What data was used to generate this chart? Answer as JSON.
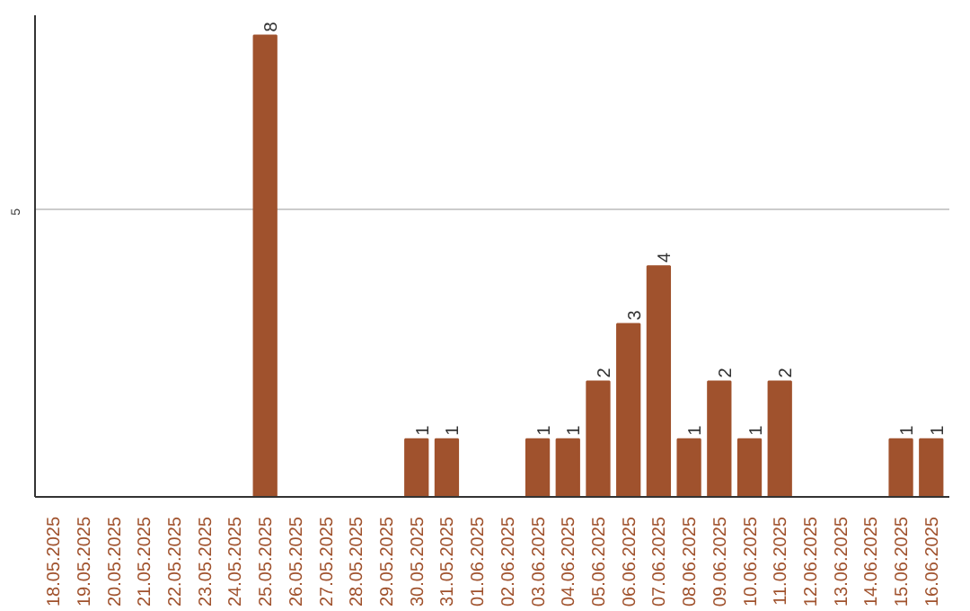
{
  "chart_data": {
    "type": "bar",
    "categories": [
      "18.05.2025",
      "19.05.2025",
      "20.05.2025",
      "21.05.2025",
      "22.05.2025",
      "23.05.2025",
      "24.05.2025",
      "25.05.2025",
      "26.05.2025",
      "27.05.2025",
      "28.05.2025",
      "29.05.2025",
      "30.05.2025",
      "31.05.2025",
      "01.06.2025",
      "02.06.2025",
      "03.06.2025",
      "04.06.2025",
      "05.06.2025",
      "06.06.2025",
      "07.06.2025",
      "08.06.2025",
      "09.06.2025",
      "10.06.2025",
      "11.06.2025",
      "12.06.2025",
      "13.06.2025",
      "14.06.2025",
      "15.06.2025",
      "16.06.2025"
    ],
    "values": [
      0,
      0,
      0,
      0,
      0,
      0,
      0,
      8,
      0,
      0,
      0,
      0,
      1,
      1,
      0,
      0,
      1,
      1,
      2,
      3,
      4,
      1,
      2,
      1,
      2,
      0,
      0,
      0,
      1,
      1
    ],
    "value_labels": [
      null,
      null,
      null,
      null,
      null,
      null,
      null,
      "8",
      null,
      null,
      null,
      null,
      "1",
      "1",
      null,
      null,
      "1",
      "1",
      "2",
      "3",
      "4",
      "1",
      "2",
      "1",
      "2",
      null,
      null,
      null,
      "1",
      "1"
    ],
    "color": "#a0522d",
    "ylim": [
      0,
      8.35
    ],
    "yticks": [
      5
    ],
    "grid": "y"
  }
}
